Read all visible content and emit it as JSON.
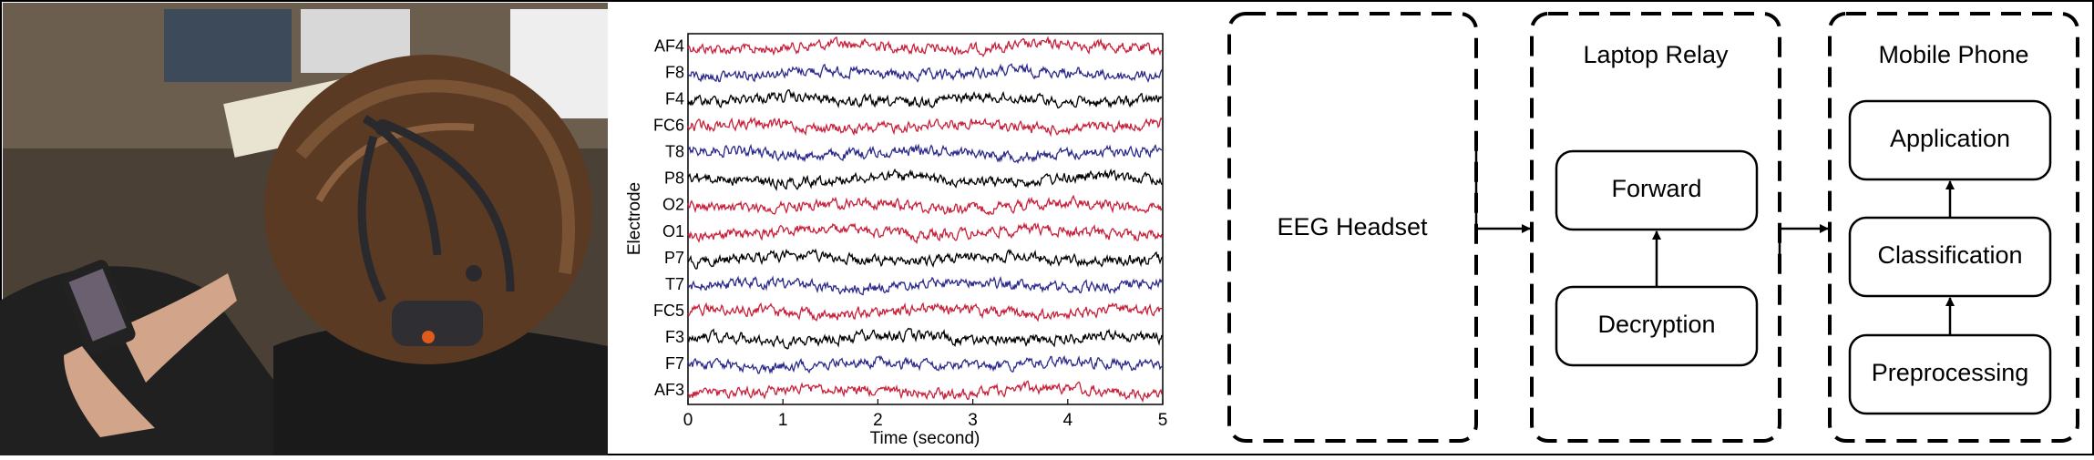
{
  "chart_data": {
    "type": "line",
    "xlabel": "Time (second)",
    "ylabel": "Electrode",
    "xlim": [
      0,
      5
    ],
    "xticks": [
      0,
      1,
      2,
      3,
      4,
      5
    ],
    "categories": [
      "AF4",
      "F8",
      "F4",
      "FC6",
      "T8",
      "P8",
      "O2",
      "O1",
      "P7",
      "T7",
      "FC5",
      "F3",
      "F7",
      "AF3"
    ],
    "category_colors": [
      "#c8203a",
      "#2c2a8a",
      "#000000",
      "#c8203a",
      "#2c2a8a",
      "#000000",
      "#c8203a",
      "#c8203a",
      "#000000",
      "#2c2a8a",
      "#c8203a",
      "#000000",
      "#2c2a8a",
      "#c8203a"
    ]
  },
  "diagram": {
    "headset": {
      "label": "EEG Headset"
    },
    "laptop": {
      "title": "Laptop Relay",
      "nodes": [
        "Forward",
        "Decryption"
      ]
    },
    "phone": {
      "title": "Mobile Phone",
      "nodes": [
        "Application",
        "Classification",
        "Preprocessing"
      ]
    }
  }
}
